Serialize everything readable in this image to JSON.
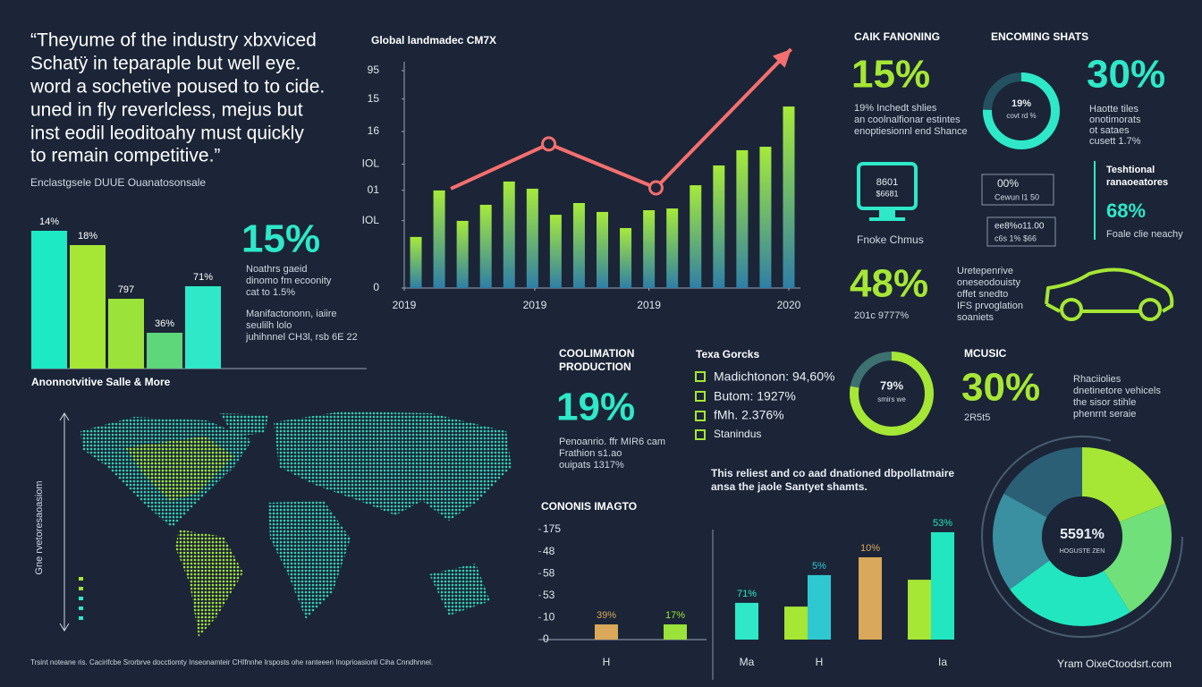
{
  "quote": {
    "lines": [
      "“Theyume of the industry xbxviced",
      "Schatÿ in teparaple but well eye.",
      "word a sochetive poused to to cide.",
      "uned in fly reverlcless, mejus but",
      "inst eodil leoditoahy must quickly",
      "to remain competitive.”"
    ],
    "source": "Enclastgsele DUUE Ouanatosonsale"
  },
  "stat_left": {
    "value": "15%",
    "lines": [
      "Noathrs gaeid",
      "dinomo fm ecoonity",
      "cat to 1.5%"
    ],
    "note": [
      "Manifactononn, iaiire",
      "seulilh lolo",
      "juhihnnel CH3l, rsb 6E 22"
    ]
  },
  "cash": {
    "title": "CAIK FANONING",
    "value": "15%",
    "lines": [
      "19% Inchedt shlies",
      "an coolnalfionar estintes",
      "enoptiesionnl end Shance"
    ]
  },
  "encoming": {
    "title": "ENCOMING SHATS",
    "ring_value": "19%",
    "ring_label": "covt rd %",
    "value": "30%",
    "lines": [
      "Haotte tiles",
      "onotimorats",
      "ot sataes",
      "cusett 1.7%"
    ]
  },
  "monitor": {
    "screen": [
      "8601",
      "$6681"
    ],
    "caption": "Fnoke Chmus"
  },
  "boxes": [
    {
      "value": "00%",
      "label": "Cewun l1 50"
    },
    {
      "value": "ee8%o11.00",
      "label": "c6s 1% $66"
    }
  ],
  "traditional": {
    "title": [
      "Teshtional",
      "ranaoeatores"
    ],
    "value": "68%",
    "caption": "Foale clie neachy"
  },
  "stat_48": {
    "value": "48%",
    "caption": "201c 9777%"
  },
  "vehicle_text": [
    "Uretepenrive",
    "oneseodouisty",
    "offet snedto",
    "IFS prvoglation",
    "soaniets"
  ],
  "coolimation": {
    "title": [
      "COOLIMATION",
      "PRODUCTION"
    ],
    "value": "19%",
    "lines": [
      "Penoanrio. ffr MIR6 cam",
      "Frathion s1.ao",
      "ouipats 1317%"
    ]
  },
  "texa": {
    "title": "Texa Gorcks",
    "items": [
      "Madichtonon: 94,60%",
      "Butom: 1927%",
      "fMh. 2.376%",
      "Stanindus"
    ]
  },
  "ring79": {
    "value": "79%",
    "label": "smirs we"
  },
  "mcusic": {
    "title": "MCUSIC",
    "value": "30%",
    "caption": "2R5t5"
  },
  "rhac": [
    "Rhaciiolies",
    "dnetinetore vehicels",
    "the sisor stihle",
    "phenrnt seraie"
  ],
  "relief": [
    "This reliest and co aad dnationed dbpollatmaire",
    "ansa the jaole Santyet shamts."
  ],
  "map_axis_label": "Gne rvetoresaoasiom",
  "footer": {
    "note": "Trsint noteane ris. Cacirifcbe Srorbrve docctiomty Inseonamteir CHIfnnhe Irsposts ohe ranteeen Inoprioasionli Ciha Cnndhnnel.",
    "site": "Yram OixeCtoodsrt.com"
  },
  "chart_data": [
    {
      "type": "bar",
      "title": "Global landmadec CM7X",
      "ylim": [
        0,
        100
      ],
      "yticks": [
        0,
        {
          "value": 31,
          "label": "IOL"
        },
        {
          "value": 45,
          "label": "01"
        },
        {
          "value": 57,
          "label": "IOL"
        },
        {
          "value": 72,
          "label": "16"
        },
        {
          "value": 87,
          "label": "15"
        },
        {
          "value": 100,
          "label": "95"
        }
      ],
      "xlim": [
        0,
        17
      ],
      "xticks": [
        {
          "value": 0,
          "label": "2019"
        },
        {
          "value": 5.6,
          "label": "2019"
        },
        {
          "value": 10.5,
          "label": "2019"
        },
        {
          "value": 16.5,
          "label": "2020"
        }
      ],
      "series": [
        {
          "color": "#a6ea3a",
          "x": [
            0.5,
            1.5,
            2.5,
            3.5,
            4.5,
            5.5,
            6.5,
            7.5,
            8.5,
            9.5,
            10.5,
            11.5,
            12.5,
            13.5,
            14.5,
            15.5,
            16.5
          ],
          "values": [
            23.5,
            44.9,
            30.9,
            38.3,
            49,
            45.7,
            33.7,
            39.1,
            35,
            27.6,
            35.8,
            36.6,
            47.3,
            56.4,
            63.4,
            65,
            83.5
          ]
        },
        {
          "type": "line",
          "color": "#f46f6f",
          "x": [
            2,
            6.2,
            10.8,
            16.6
          ],
          "values": [
            45.7,
            66.3,
            46.1,
            109.9
          ]
        }
      ]
    },
    {
      "type": "bar",
      "title": "Anonnotvitive Salle & More",
      "ylim": [
        0,
        160
      ],
      "values": [
        154,
        138,
        78,
        40,
        92
      ],
      "colors": [
        "#1de9c5",
        "#a6e635",
        "#9be23a",
        "#5ed67a",
        "#2ee8c8"
      ],
      "annotations": [
        "14%",
        "18%",
        "797",
        "36%",
        "71%"
      ]
    },
    {
      "type": "bar",
      "title": "CONONIS IMAGTO",
      "ylim": [
        0,
        50
      ],
      "yticks": [
        0,
        10,
        {
          "value": 20,
          "label": "53"
        },
        {
          "value": 30,
          "label": "58"
        },
        {
          "value": 40,
          "label": "48"
        },
        {
          "value": 50,
          "label": "175"
        }
      ],
      "categories": [
        "H",
        null,
        "Ma",
        null,
        "H",
        null,
        null,
        "Ia"
      ],
      "values": [
        6.9,
        6.9,
        16.7,
        15,
        29.3,
        37.4,
        27.2,
        48.8
      ],
      "colors": [
        "#d9a85a",
        "#9be23a",
        "#2ee8c8",
        "#a6e635",
        "#2ec9d0",
        "#d9a85a",
        "#a6e635",
        "#22e6c0"
      ],
      "annotations": [
        "39%",
        "17%",
        "71%",
        null,
        "5%",
        "10%",
        null,
        "53%"
      ]
    },
    {
      "type": "pie",
      "values": [
        19,
        22,
        24,
        18,
        17
      ],
      "colors": [
        "#a6e635",
        "#6fe07a",
        "#22e6c0",
        "#3a8fa0",
        "#2a5f75"
      ],
      "center_label": "5591%",
      "center_sublabel": "HOGUSTE ZEN"
    }
  ]
}
